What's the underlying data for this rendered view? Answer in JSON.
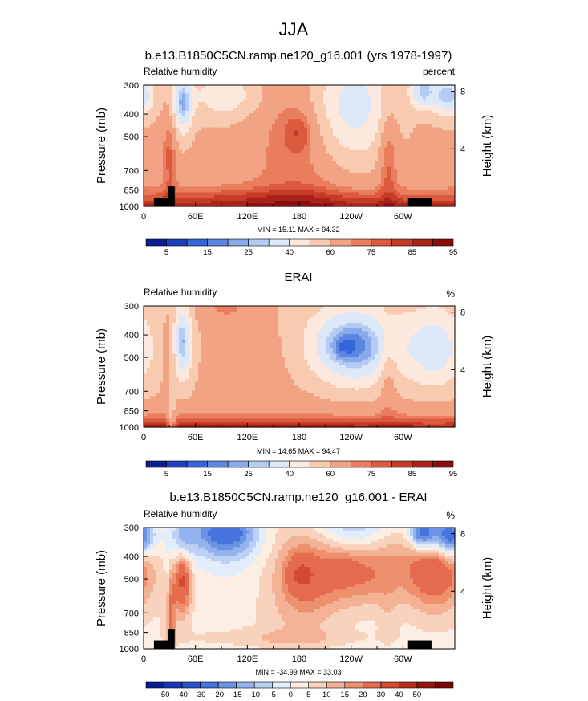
{
  "figure": {
    "season": "JJA"
  },
  "colors": {
    "rh_scale": [
      "#0b1e8f",
      "#1f3fbd",
      "#3466d8",
      "#5b87e2",
      "#88a9ec",
      "#b4cbf3",
      "#dce8f8",
      "#fce8dc",
      "#f8cab0",
      "#f2a384",
      "#e97d5d",
      "#dc5a3d",
      "#c53b26",
      "#a8231a",
      "#8a0e0e"
    ],
    "diff_scale": [
      "#0b1e8f",
      "#1a37b3",
      "#2b55cf",
      "#4674dc",
      "#6a93e6",
      "#93b3ee",
      "#bbd0f4",
      "#e2ecfa",
      "#fdeee4",
      "#f9d2bd",
      "#f4b295",
      "#ee8f6d",
      "#e46c4c",
      "#d24a30",
      "#b72d1e",
      "#95160f",
      "#780808"
    ],
    "terrain": "#000000"
  },
  "chart_data": [
    {
      "type": "heatmap",
      "title": "b.e13.B1850C5CN.ramp.ne120_g16.001 (yrs 1978-1997)",
      "left_label": "Relative humidity",
      "right_label": "percent",
      "ylabel": "Pressure (mb)",
      "ylabel_right": "Height (km)",
      "y_ticks": [
        "300",
        "400",
        "500",
        "700",
        "850",
        "1000"
      ],
      "y_tick_values": [
        300,
        400,
        500,
        700,
        850,
        1000
      ],
      "height_ticks": [
        "8",
        "4"
      ],
      "height_tick_values": [
        8,
        4
      ],
      "x_ticks": [
        "0",
        "60E",
        "120E",
        "180",
        "120W",
        "60W"
      ],
      "x_tick_values": [
        0,
        60,
        120,
        180,
        240,
        300
      ],
      "xlim": [
        0,
        360
      ],
      "ylim": [
        1000,
        300
      ],
      "min_max_text": "MIN = 15.11  MAX = 94.32",
      "colorbar_labels": [
        "5",
        "15",
        "25",
        "40",
        "60",
        "75",
        "85",
        "95"
      ],
      "colorbar_levels": [
        5,
        10,
        15,
        20,
        25,
        30,
        40,
        50,
        60,
        70,
        75,
        80,
        85,
        90,
        95
      ],
      "show_terrain": true
    },
    {
      "type": "heatmap",
      "title": "ERAI",
      "left_label": "Relative humidity",
      "right_label": "%",
      "ylabel": "Pressure (mb)",
      "ylabel_right": "Height (km)",
      "y_ticks": [
        "300",
        "400",
        "500",
        "700",
        "850",
        "1000"
      ],
      "y_tick_values": [
        300,
        400,
        500,
        700,
        850,
        1000
      ],
      "height_ticks": [
        "8",
        "4"
      ],
      "height_tick_values": [
        8,
        4
      ],
      "x_ticks": [
        "0",
        "60E",
        "120E",
        "180",
        "120W",
        "60W"
      ],
      "x_tick_values": [
        0,
        60,
        120,
        180,
        240,
        300
      ],
      "xlim": [
        0,
        360
      ],
      "ylim": [
        1000,
        300
      ],
      "min_max_text": "MIN = 14.65  MAX = 94.47",
      "colorbar_labels": [
        "5",
        "15",
        "25",
        "40",
        "60",
        "75",
        "85",
        "95"
      ],
      "colorbar_levels": [
        5,
        10,
        15,
        20,
        25,
        30,
        40,
        50,
        60,
        70,
        75,
        80,
        85,
        90,
        95
      ],
      "show_terrain": false
    },
    {
      "type": "heatmap",
      "title": "b.e13.B1850C5CN.ramp.ne120_g16.001 - ERAI",
      "left_label": "Relative humidity",
      "right_label": "%",
      "ylabel": "Pressure (mb)",
      "ylabel_right": "Height (km)",
      "y_ticks": [
        "300",
        "400",
        "500",
        "700",
        "850",
        "1000"
      ],
      "y_tick_values": [
        300,
        400,
        500,
        700,
        850,
        1000
      ],
      "height_ticks": [
        "8",
        "4"
      ],
      "height_tick_values": [
        8,
        4
      ],
      "x_ticks": [
        "0",
        "60E",
        "120E",
        "180",
        "120W",
        "60W"
      ],
      "x_tick_values": [
        0,
        60,
        120,
        180,
        240,
        300
      ],
      "xlim": [
        0,
        360
      ],
      "ylim": [
        1000,
        300
      ],
      "min_max_text": "MIN = -34.99  MAX = 33.03",
      "colorbar_labels": [
        "-50",
        "-40",
        "-30",
        "-20",
        "-15",
        "-10",
        "-5",
        "0",
        "5",
        "10",
        "15",
        "20",
        "30",
        "40",
        "50"
      ],
      "colorbar_levels": [
        -50,
        -40,
        -30,
        -20,
        -15,
        -10,
        -5,
        0,
        5,
        10,
        15,
        20,
        30,
        40,
        50
      ],
      "show_terrain": true
    }
  ]
}
